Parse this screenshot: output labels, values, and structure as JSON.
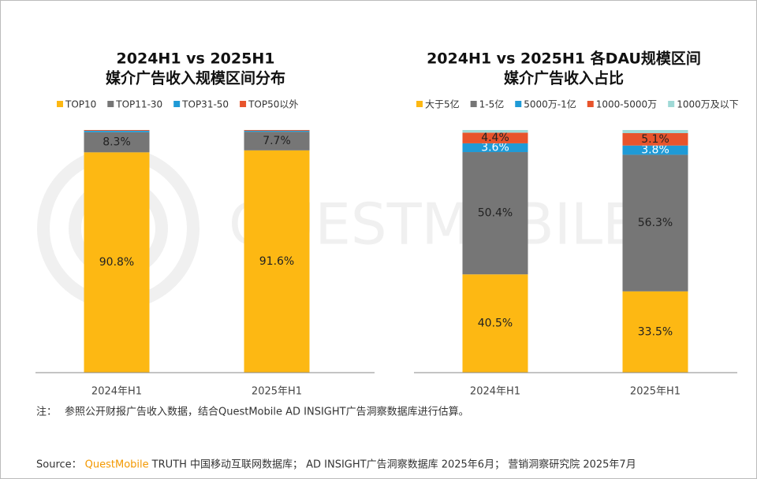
{
  "chart_data": [
    {
      "type": "stacked_bar",
      "title": [
        "2024H1 vs 2025H1",
        "媒介广告收入规模区间分布"
      ],
      "categories": [
        "2024年H1",
        "2025年H1"
      ],
      "ylim": [
        0,
        100
      ],
      "series": [
        {
          "name": "TOP10",
          "color": "#fdb813",
          "values": [
            90.8,
            91.6
          ],
          "value_labels": [
            "90.8%",
            "91.6%"
          ]
        },
        {
          "name": "TOP11-30",
          "color": "#767676",
          "values": [
            8.3,
            7.7
          ],
          "value_labels": [
            "8.3%",
            "7.7%"
          ]
        },
        {
          "name": "TOP31-50",
          "color": "#1f9ad6",
          "values": [
            0.6,
            0.4
          ]
        },
        {
          "name": "TOP50以外",
          "color": "#e8542c",
          "values": [
            0.3,
            0.3
          ]
        }
      ]
    },
    {
      "type": "stacked_bar",
      "title": [
        "2024H1 vs 2025H1 各DAU规模区间",
        "媒介广告收入占比"
      ],
      "categories": [
        "2024年H1",
        "2025年H1"
      ],
      "ylim": [
        0,
        100
      ],
      "series": [
        {
          "name": "大于5亿",
          "color": "#fdb813",
          "values": [
            40.5,
            33.5
          ],
          "value_labels": [
            "40.5%",
            "33.5%"
          ]
        },
        {
          "name": "1-5亿",
          "color": "#767676",
          "values": [
            50.4,
            56.3
          ],
          "value_labels": [
            "50.4%",
            "56.3%"
          ]
        },
        {
          "name": "5000万-1亿",
          "color": "#1f9ad6",
          "values": [
            3.6,
            3.8
          ],
          "value_labels": [
            "3.6%",
            "3.8%"
          ]
        },
        {
          "name": "1000-5000万",
          "color": "#e8542c",
          "values": [
            4.4,
            5.1
          ],
          "value_labels": [
            "4.4%",
            "5.1%"
          ]
        },
        {
          "name": "1000万及以下",
          "color": "#9fd9d6",
          "values": [
            1.1,
            1.3
          ]
        }
      ]
    }
  ],
  "watermark": "QUESTMOBILE",
  "note": {
    "label": "注：",
    "text": "参照公开财报广告收入数据，结合QuestMobile AD INSIGHT广告洞察数据库进行估算。"
  },
  "source": {
    "label": "Source：",
    "brand": "QuestMobile",
    "text": "TRUTH 中国移动互联网数据库； AD INSIGHT广告洞察数据库 2025年6月； 营销洞察研究院 2025年7月"
  }
}
